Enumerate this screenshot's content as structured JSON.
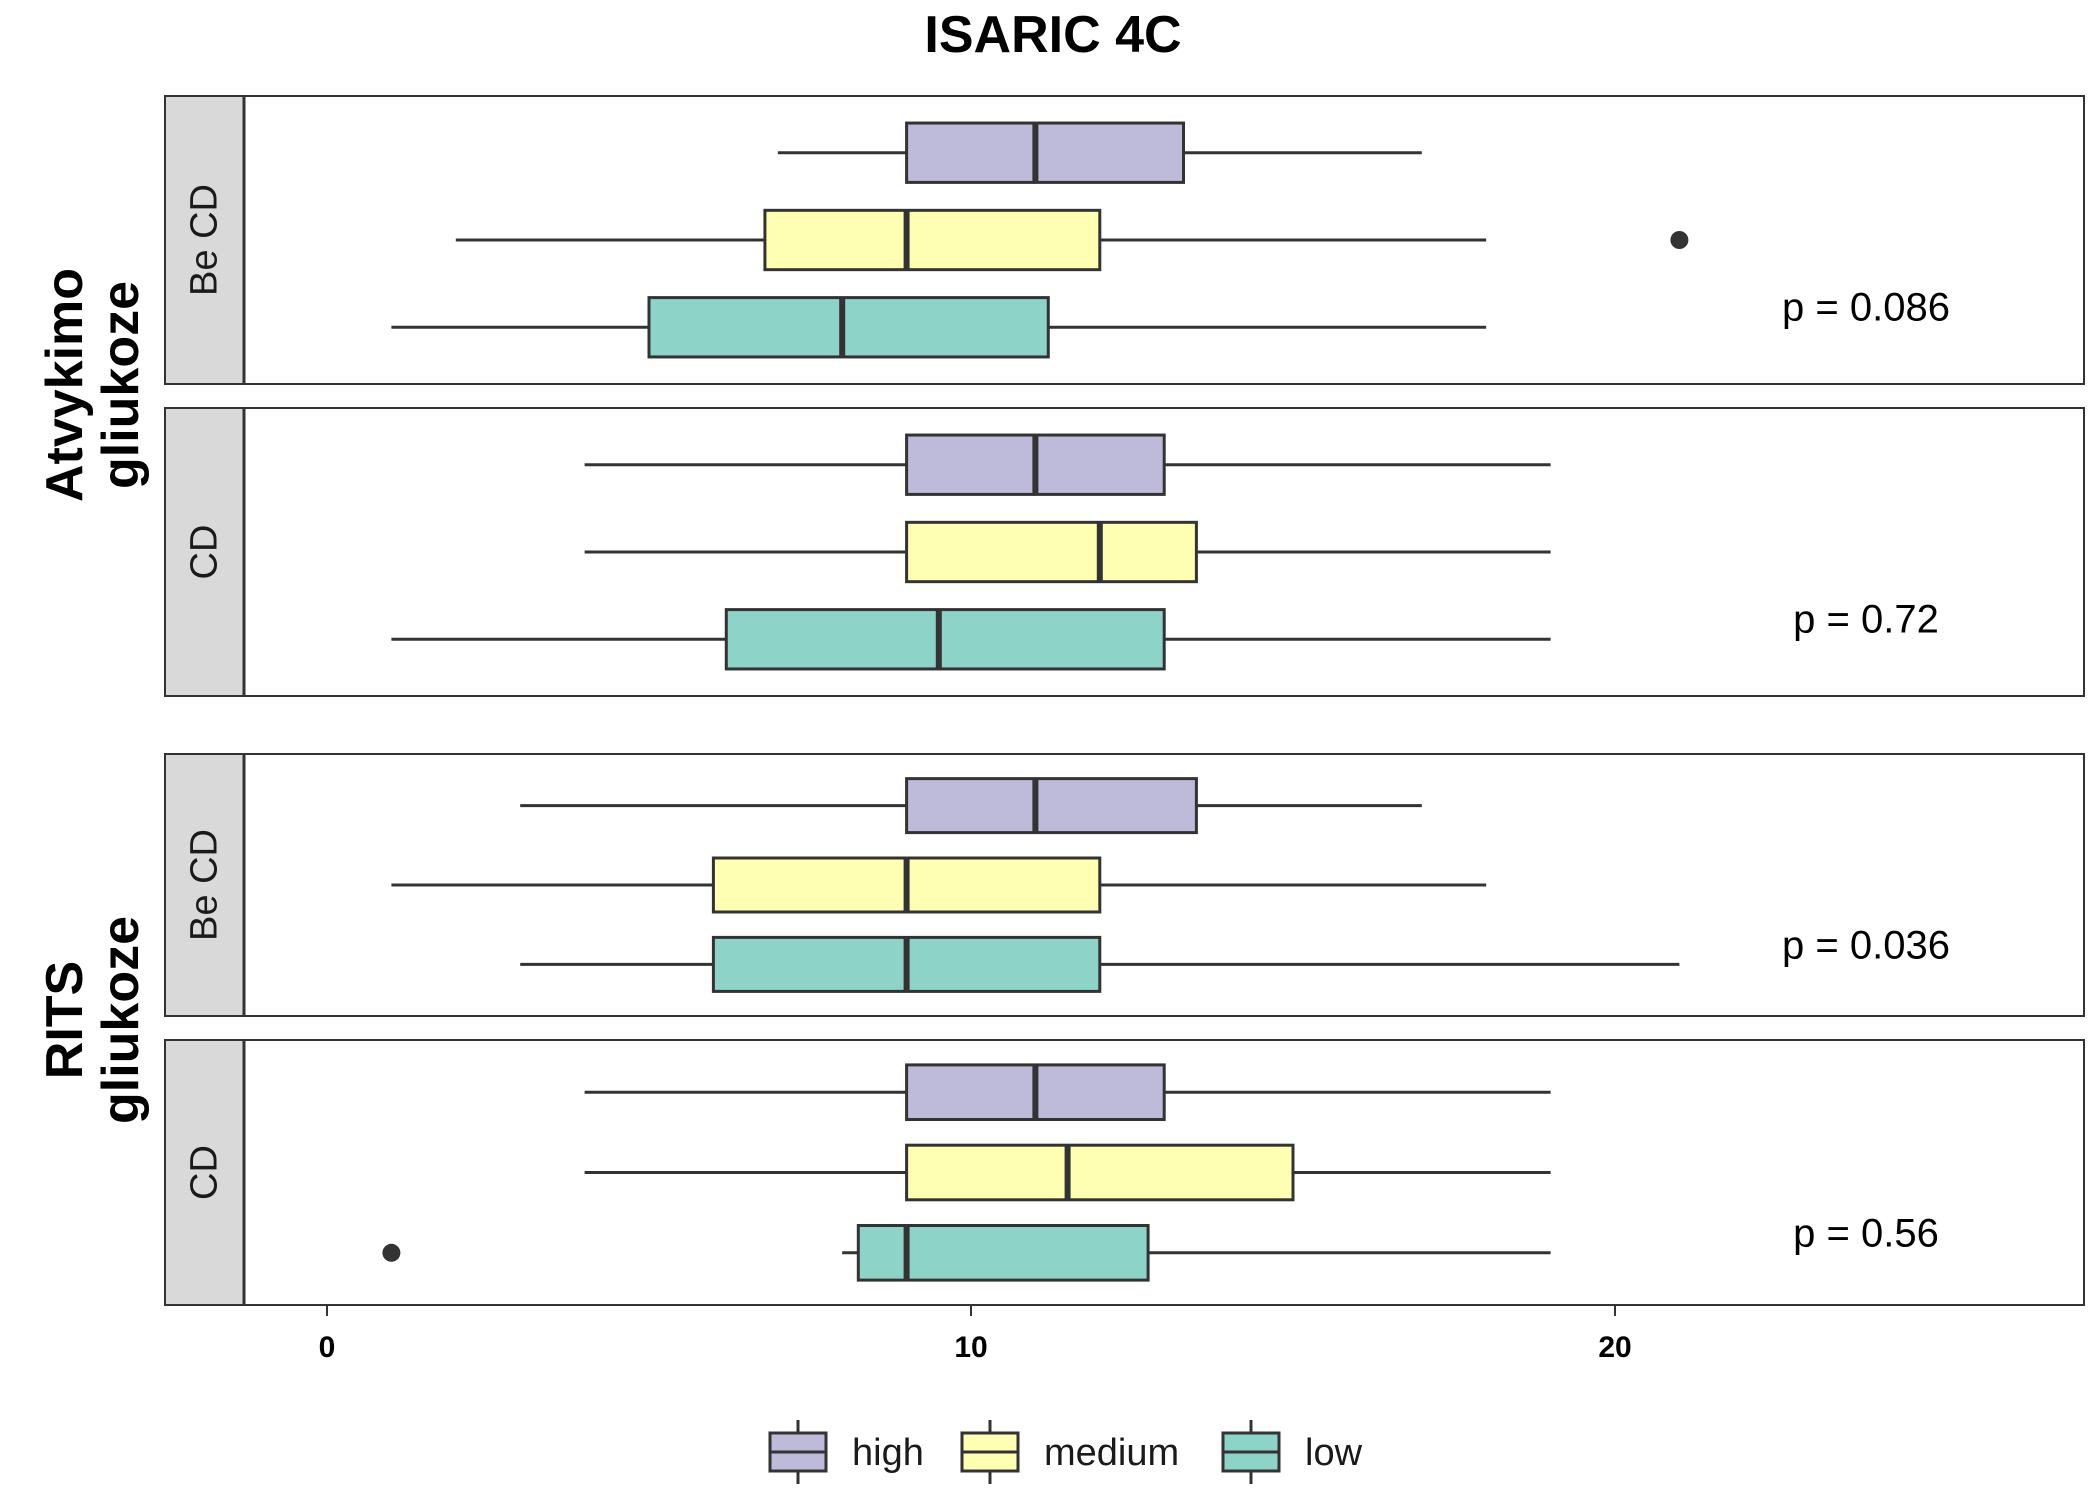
{
  "chart_data": {
    "type": "boxplot",
    "orientation": "horizontal",
    "title": "ISARIC 4C",
    "xlim": [
      -2.5,
      27.3
    ],
    "x_ticks": [
      0,
      10,
      20
    ],
    "x_tick_labels": [
      "0",
      "10",
      "20"
    ],
    "grid": false,
    "legend": {
      "placement": "bottom",
      "entries": [
        {
          "name": "high",
          "color": "#BEBADA"
        },
        {
          "name": "medium",
          "color": "#FFFFB3"
        },
        {
          "name": "low",
          "color": "#8DD3C7"
        }
      ]
    },
    "groups": [
      {
        "label_lines": [
          "Atvykimo",
          "gliukoze"
        ],
        "panels": [
          {
            "strip": "Be CD",
            "p_label": "p = 0.086",
            "boxes": [
              {
                "level": "high",
                "whisker_low": 7,
                "q1": 9,
                "median": 11,
                "q3": 13.3,
                "whisker_high": 17,
                "outliers": []
              },
              {
                "level": "medium",
                "whisker_low": 2,
                "q1": 6.8,
                "median": 9,
                "q3": 12,
                "whisker_high": 18,
                "outliers": [
                  21
                ]
              },
              {
                "level": "low",
                "whisker_low": 1,
                "q1": 5,
                "median": 8,
                "q3": 11.2,
                "whisker_high": 18,
                "outliers": []
              }
            ]
          },
          {
            "strip": "CD",
            "p_label": "p = 0.72",
            "boxes": [
              {
                "level": "high",
                "whisker_low": 4,
                "q1": 9,
                "median": 11,
                "q3": 13,
                "whisker_high": 19,
                "outliers": []
              },
              {
                "level": "medium",
                "whisker_low": 4,
                "q1": 9,
                "median": 12,
                "q3": 13.5,
                "whisker_high": 19,
                "outliers": []
              },
              {
                "level": "low",
                "whisker_low": 1,
                "q1": 6.2,
                "median": 9.5,
                "q3": 13,
                "whisker_high": 19,
                "outliers": []
              }
            ]
          }
        ]
      },
      {
        "label_lines": [
          "RITS",
          "gliukoze"
        ],
        "panels": [
          {
            "strip": "Be CD",
            "p_label": "p = 0.036",
            "boxes": [
              {
                "level": "high",
                "whisker_low": 3,
                "q1": 9,
                "median": 11,
                "q3": 13.5,
                "whisker_high": 17,
                "outliers": []
              },
              {
                "level": "medium",
                "whisker_low": 1,
                "q1": 6,
                "median": 9,
                "q3": 12,
                "whisker_high": 18,
                "outliers": []
              },
              {
                "level": "low",
                "whisker_low": 3,
                "q1": 6,
                "median": 9,
                "q3": 12,
                "whisker_high": 21,
                "outliers": []
              }
            ]
          },
          {
            "strip": "CD",
            "p_label": "p = 0.56",
            "boxes": [
              {
                "level": "high",
                "whisker_low": 4,
                "q1": 9,
                "median": 11,
                "q3": 13,
                "whisker_high": 19,
                "outliers": []
              },
              {
                "level": "medium",
                "whisker_low": 4,
                "q1": 9,
                "median": 11.5,
                "q3": 15,
                "whisker_high": 19,
                "outliers": []
              },
              {
                "level": "low",
                "whisker_low": 8,
                "q1": 8.25,
                "median": 9,
                "q3": 12.75,
                "whisker_high": 19,
                "outliers": [
                  1
                ]
              }
            ]
          }
        ]
      }
    ]
  }
}
